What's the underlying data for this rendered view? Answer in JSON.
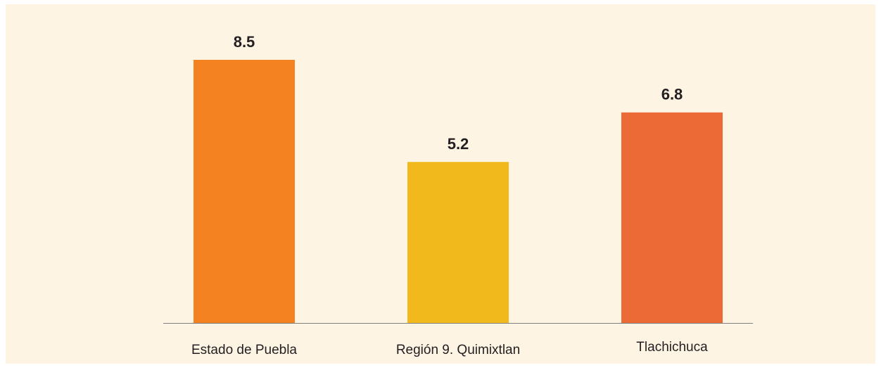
{
  "chart_data": {
    "type": "bar",
    "categories": [
      "Estado de Puebla",
      "Región 9. Quimixtlan",
      "Tlachichuca"
    ],
    "values": [
      8.5,
      5.2,
      6.8
    ],
    "colors": [
      "#f58220",
      "#f1b91b",
      "#ec6a35"
    ]
  }
}
